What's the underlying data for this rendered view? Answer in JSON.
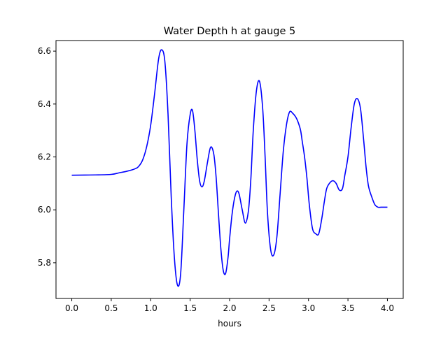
{
  "chart_data": {
    "type": "line",
    "title": "Water Depth h at gauge 5",
    "xlabel": "hours",
    "ylabel": "",
    "xlim": [
      -0.2,
      4.2
    ],
    "ylim": [
      5.665,
      6.64
    ],
    "xticks": [
      0.0,
      0.5,
      1.0,
      1.5,
      2.0,
      2.5,
      3.0,
      3.5,
      4.0
    ],
    "xtick_labels": [
      "0.0",
      "0.5",
      "1.0",
      "1.5",
      "2.0",
      "2.5",
      "3.0",
      "3.5",
      "4.0"
    ],
    "yticks": [
      5.8,
      6.0,
      6.2,
      6.4,
      6.6
    ],
    "ytick_labels": [
      "5.8",
      "6.0",
      "6.2",
      "6.4",
      "6.6"
    ],
    "grid": false,
    "legend": "none",
    "series": [
      {
        "color": "#0000ff",
        "x": [
          0.0,
          0.3,
          0.5,
          0.6,
          0.7,
          0.8,
          0.85,
          0.9,
          0.95,
          1.0,
          1.05,
          1.1,
          1.14,
          1.18,
          1.22,
          1.26,
          1.3,
          1.34,
          1.38,
          1.42,
          1.46,
          1.5,
          1.53,
          1.56,
          1.59,
          1.62,
          1.65,
          1.68,
          1.72,
          1.76,
          1.8,
          1.83,
          1.86,
          1.89,
          1.92,
          1.95,
          1.98,
          2.0,
          2.03,
          2.06,
          2.09,
          2.12,
          2.16,
          2.2,
          2.24,
          2.27,
          2.3,
          2.34,
          2.38,
          2.42,
          2.45,
          2.48,
          2.52,
          2.56,
          2.6,
          2.64,
          2.68,
          2.72,
          2.76,
          2.8,
          2.84,
          2.87,
          2.9,
          2.92,
          2.95,
          2.98,
          3.01,
          3.05,
          3.09,
          3.13,
          3.17,
          3.2,
          3.23,
          3.27,
          3.31,
          3.35,
          3.39,
          3.43,
          3.46,
          3.5,
          3.54,
          3.58,
          3.62,
          3.66,
          3.7,
          3.73,
          3.76,
          3.8,
          3.84,
          3.88,
          3.92,
          3.96,
          4.0
        ],
        "y": [
          6.131,
          6.132,
          6.134,
          6.14,
          6.146,
          6.155,
          6.165,
          6.19,
          6.24,
          6.32,
          6.44,
          6.57,
          6.605,
          6.56,
          6.36,
          6.05,
          5.82,
          5.715,
          5.76,
          6.0,
          6.25,
          6.36,
          6.375,
          6.3,
          6.19,
          6.11,
          6.087,
          6.11,
          6.18,
          6.237,
          6.21,
          6.12,
          5.98,
          5.85,
          5.77,
          5.76,
          5.82,
          5.89,
          5.98,
          6.04,
          6.07,
          6.06,
          6.0,
          5.95,
          6.0,
          6.12,
          6.3,
          6.45,
          6.485,
          6.38,
          6.2,
          5.99,
          5.85,
          5.83,
          5.9,
          6.06,
          6.22,
          6.32,
          6.37,
          6.365,
          6.35,
          6.33,
          6.3,
          6.26,
          6.2,
          6.12,
          6.02,
          5.93,
          5.91,
          5.91,
          5.97,
          6.03,
          6.08,
          6.102,
          6.11,
          6.1,
          6.075,
          6.08,
          6.13,
          6.2,
          6.31,
          6.4,
          6.42,
          6.38,
          6.26,
          6.16,
          6.09,
          6.05,
          6.02,
          6.01,
          6.01,
          6.01,
          6.01
        ]
      }
    ]
  }
}
